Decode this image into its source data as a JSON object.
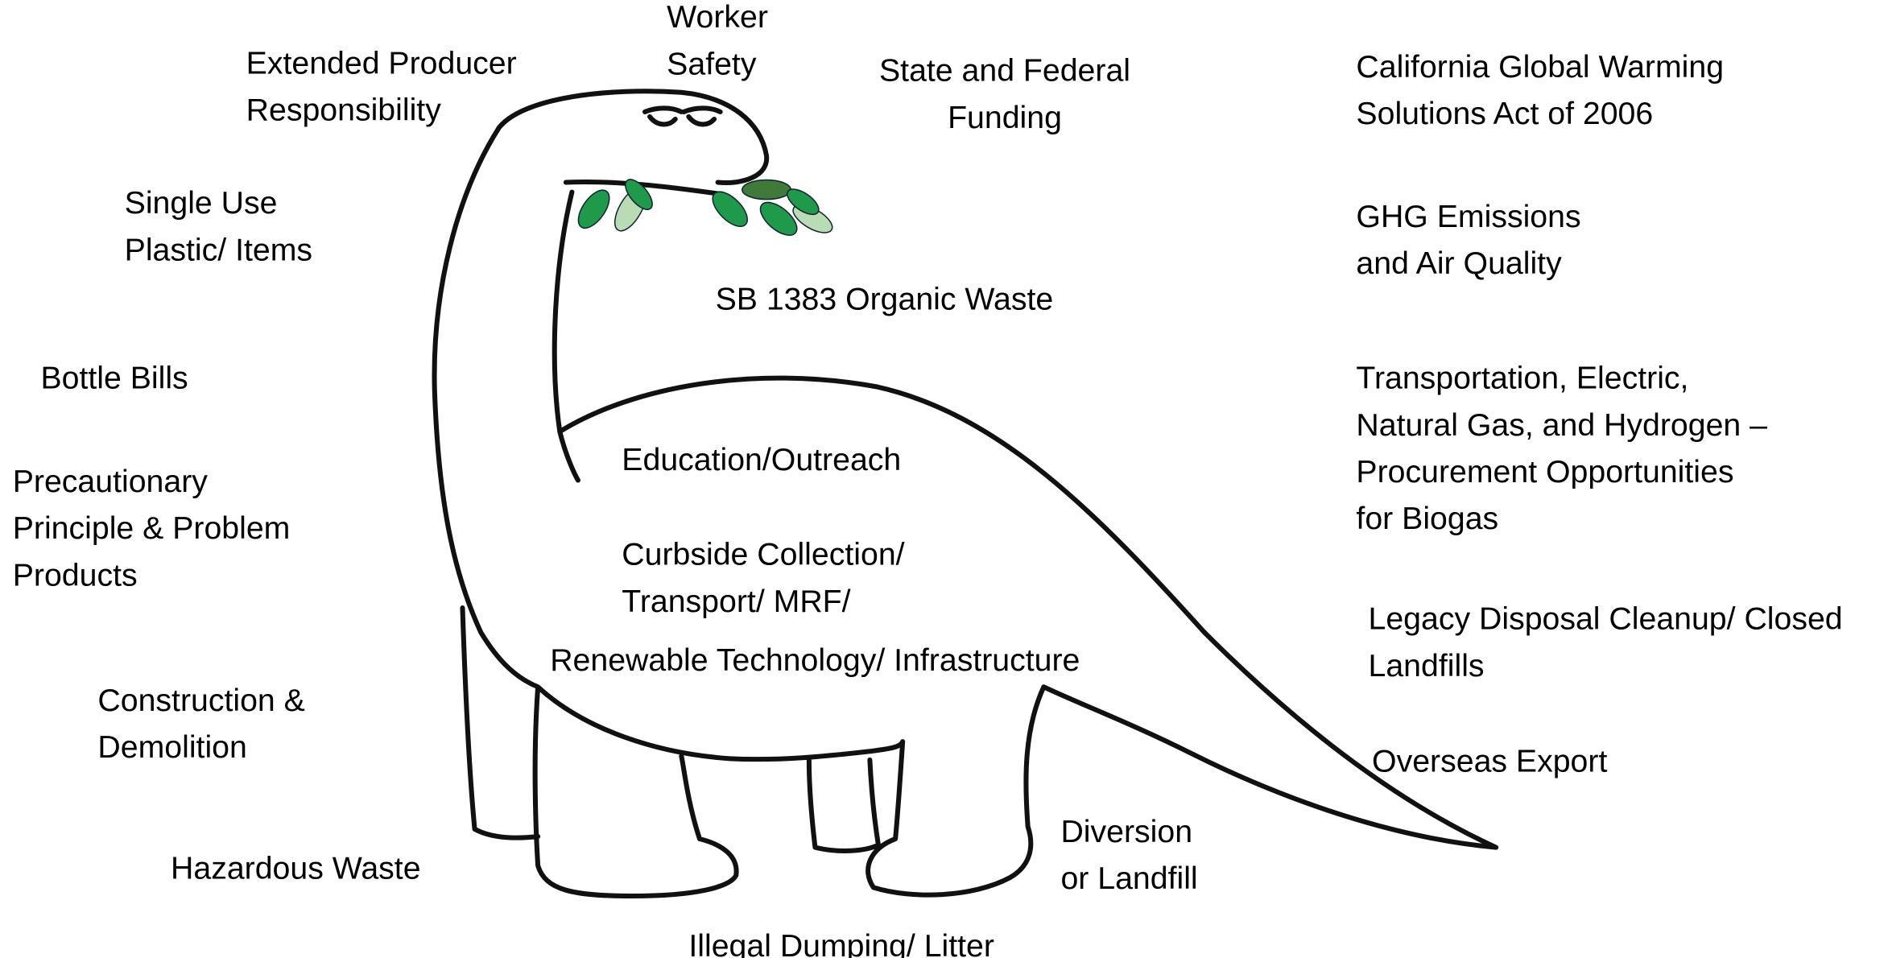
{
  "labels": [
    {
      "lines": [
        "Worker",
        "Safety"
      ]
    },
    {
      "lines": [
        "Extended Producer",
        "Responsibility"
      ]
    },
    {
      "lines": [
        "State and Federal",
        "Funding"
      ]
    },
    {
      "lines": [
        "California Global Warming",
        "Solutions Act of 2006"
      ]
    },
    {
      "lines": [
        "Single Use",
        "Plastic/ Items"
      ]
    },
    {
      "lines": [
        "GHG Emissions",
        "and Air Quality"
      ]
    },
    {
      "lines": [
        "SB 1383 Organic Waste"
      ]
    },
    {
      "lines": [
        "Bottle Bills"
      ]
    },
    {
      "lines": [
        "Transportation, Electric,",
        "Natural Gas, and Hydrogen –",
        "Procurement Opportunities",
        "for Biogas"
      ]
    },
    {
      "lines": [
        "Education/Outreach"
      ]
    },
    {
      "lines": [
        "Precautionary",
        "Principle & Problem",
        "Products"
      ]
    },
    {
      "lines": [
        "Curbside Collection/",
        "Transport/ MRF/"
      ]
    },
    {
      "lines": [
        "Legacy Disposal Cleanup/ Closed",
        "Landfills"
      ]
    },
    {
      "lines": [
        "Renewable Technology/ Infrastructure"
      ]
    },
    {
      "lines": [
        "Construction &",
        "Demolition"
      ]
    },
    {
      "lines": [
        "Overseas Export"
      ]
    },
    {
      "lines": [
        "Diversion",
        "or Landfill"
      ]
    },
    {
      "lines": [
        "Hazardous Waste"
      ]
    },
    {
      "lines": [
        "Illegal Dumping/ Litter"
      ]
    }
  ]
}
